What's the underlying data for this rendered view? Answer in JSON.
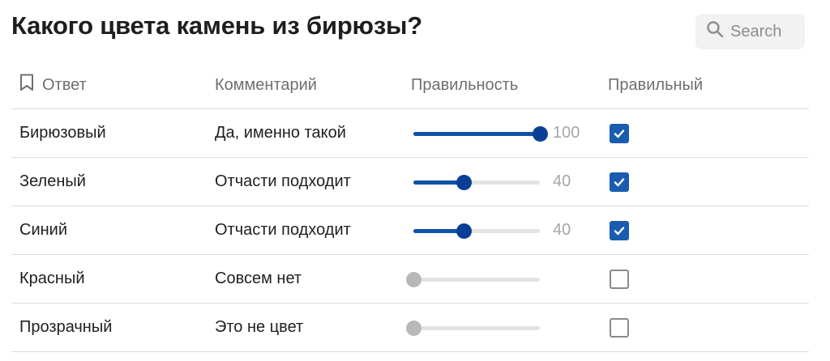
{
  "title": "Какого цвета камень из бирюзы?",
  "search": {
    "label": "Search",
    "icon": "search-icon"
  },
  "columns": {
    "answer": "Ответ",
    "comment": "Комментарий",
    "correctness": "Правильность",
    "correct": "Правильный"
  },
  "rows": [
    {
      "answer": "Бирюзовый",
      "comment": "Да, именно такой",
      "correctness": 100,
      "correctness_label": "100",
      "correct": true
    },
    {
      "answer": "Зеленый",
      "comment": "Отчасти подходит",
      "correctness": 40,
      "correctness_label": "40",
      "correct": true
    },
    {
      "answer": "Синий",
      "comment": "Отчасти подходит",
      "correctness": 40,
      "correctness_label": "40",
      "correct": true
    },
    {
      "answer": "Красный",
      "comment": "Совсем нет",
      "correctness": 0,
      "correctness_label": "",
      "correct": false
    },
    {
      "answer": "Прозрачный",
      "comment": "Это не цвет",
      "correctness": 0,
      "correctness_label": "",
      "correct": false
    }
  ],
  "colors": {
    "accent": "#1a5cb0",
    "thumb": "#0b3f96",
    "thumb_zero": "#b8b8b8"
  }
}
